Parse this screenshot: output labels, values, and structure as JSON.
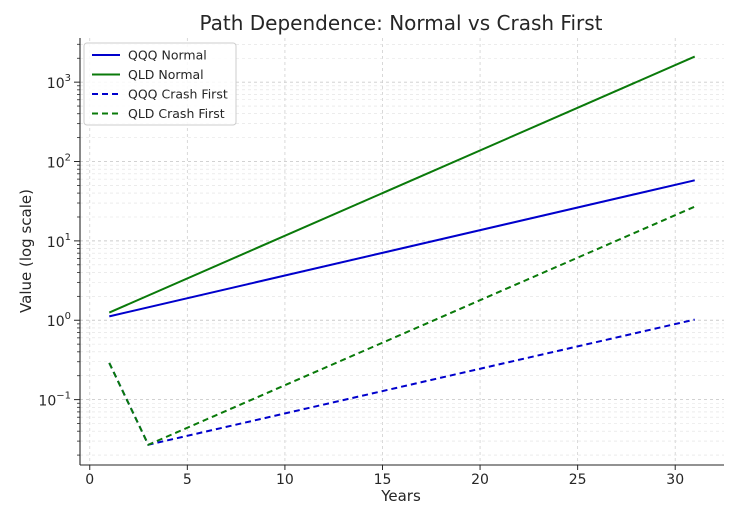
{
  "chart_data": {
    "type": "line",
    "title": "Path Dependence: Normal vs Crash First",
    "xlabel": "Years",
    "ylabel": "Value (log scale)",
    "yscale": "log",
    "xlim": [
      -0.5,
      32.5
    ],
    "ylim": [
      0.015,
      3600
    ],
    "grid": true,
    "legend_position": "top-left",
    "x_ticks": [
      0,
      5,
      10,
      15,
      20,
      25,
      30
    ],
    "y_ticks": [
      {
        "value": 0.1,
        "base": "10",
        "exp": "−1"
      },
      {
        "value": 1,
        "base": "10",
        "exp": "0"
      },
      {
        "value": 10,
        "base": "10",
        "exp": "1"
      },
      {
        "value": 100,
        "base": "10",
        "exp": "2"
      },
      {
        "value": 1000,
        "base": "10",
        "exp": "3"
      }
    ],
    "series": [
      {
        "name": "QQQ Normal",
        "color": "#0000cc",
        "dash": "solid",
        "x": [
          1,
          31
        ],
        "y": [
          1.12,
          58
        ]
      },
      {
        "name": "QLD Normal",
        "color": "#0a7a0a",
        "dash": "solid",
        "x": [
          1,
          31
        ],
        "y": [
          1.25,
          2100
        ]
      },
      {
        "name": "QQQ Crash First",
        "color": "#0000cc",
        "dash": "dashed",
        "x": [
          1,
          3,
          31
        ],
        "y": [
          0.29,
          0.027,
          1.02
        ]
      },
      {
        "name": "QLD Crash First",
        "color": "#0a7a0a",
        "dash": "dashed",
        "x": [
          1,
          3,
          31
        ],
        "y": [
          0.29,
          0.027,
          27
        ]
      }
    ]
  }
}
